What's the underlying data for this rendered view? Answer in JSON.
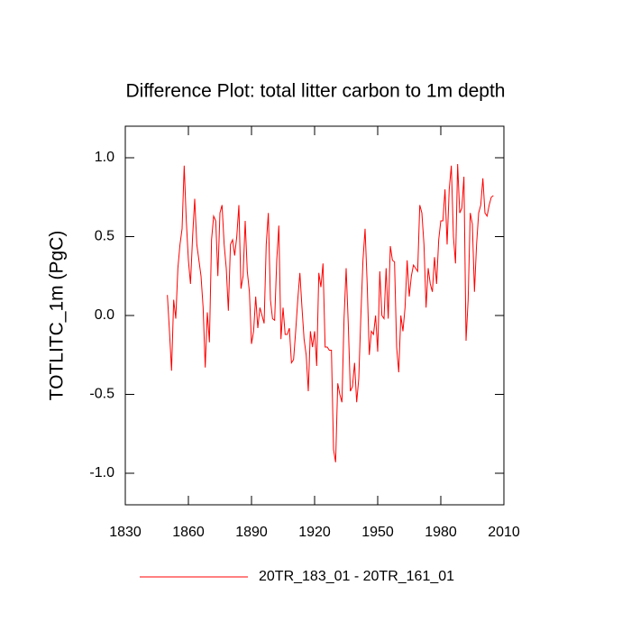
{
  "chart_data": {
    "type": "line",
    "title": "Difference Plot: total litter carbon to 1m depth",
    "y_label": "TOTLITC_1m  (PgC)",
    "x": [
      1850,
      1851,
      1852,
      1853,
      1854,
      1855,
      1856,
      1857,
      1858,
      1859,
      1860,
      1861,
      1862,
      1863,
      1864,
      1865,
      1866,
      1867,
      1868,
      1869,
      1870,
      1871,
      1872,
      1873,
      1874,
      1875,
      1876,
      1877,
      1878,
      1879,
      1880,
      1881,
      1882,
      1883,
      1884,
      1885,
      1886,
      1887,
      1888,
      1889,
      1890,
      1891,
      1892,
      1893,
      1894,
      1895,
      1896,
      1897,
      1898,
      1899,
      1900,
      1901,
      1902,
      1903,
      1904,
      1905,
      1906,
      1907,
      1908,
      1909,
      1910,
      1911,
      1912,
      1913,
      1914,
      1915,
      1916,
      1917,
      1918,
      1919,
      1920,
      1921,
      1922,
      1923,
      1924,
      1925,
      1926,
      1927,
      1928,
      1929,
      1930,
      1931,
      1932,
      1933,
      1934,
      1935,
      1936,
      1937,
      1938,
      1939,
      1940,
      1941,
      1942,
      1943,
      1944,
      1945,
      1946,
      1947,
      1948,
      1949,
      1950,
      1951,
      1952,
      1953,
      1954,
      1955,
      1956,
      1957,
      1958,
      1959,
      1960,
      1961,
      1962,
      1963,
      1964,
      1965,
      1966,
      1967,
      1968,
      1969,
      1970,
      1971,
      1972,
      1973,
      1974,
      1975,
      1976,
      1977,
      1978,
      1979,
      1980,
      1981,
      1982,
      1983,
      1984,
      1985,
      1986,
      1987,
      1988,
      1989,
      1990,
      1991,
      1992,
      1993,
      1994,
      1995,
      1996,
      1997,
      1998,
      1999,
      2000,
      2001,
      2002,
      2003,
      2004,
      2005
    ],
    "series": [
      {
        "name": "20TR_183_01 - 20TR_161_01",
        "color": "#ff0000",
        "values": [
          0.13,
          -0.1,
          -0.35,
          0.1,
          -0.02,
          0.3,
          0.45,
          0.55,
          0.95,
          0.6,
          0.35,
          0.2,
          0.5,
          0.74,
          0.45,
          0.35,
          0.25,
          0.05,
          -0.33,
          0.02,
          -0.17,
          0.48,
          0.63,
          0.6,
          0.25,
          0.65,
          0.7,
          0.45,
          0.3,
          0.03,
          0.45,
          0.48,
          0.38,
          0.5,
          0.7,
          0.17,
          0.25,
          0.6,
          0.28,
          0.15,
          -0.18,
          -0.1,
          0.12,
          -0.08,
          0.05,
          0.0,
          -0.05,
          0.45,
          0.65,
          0.1,
          -0.02,
          -0.03,
          0.35,
          0.57,
          -0.15,
          0.05,
          -0.12,
          -0.12,
          -0.08,
          -0.3,
          -0.28,
          -0.1,
          0.1,
          0.27,
          0.05,
          -0.15,
          -0.25,
          -0.48,
          -0.1,
          -0.2,
          -0.1,
          -0.32,
          0.27,
          0.18,
          0.33,
          -0.2,
          -0.2,
          -0.22,
          -0.22,
          -0.85,
          -0.93,
          -0.43,
          -0.5,
          -0.55,
          -0.02,
          0.3,
          -0.05,
          -0.48,
          -0.45,
          -0.3,
          -0.55,
          -0.4,
          0.0,
          0.35,
          0.55,
          0.2,
          -0.25,
          -0.1,
          -0.12,
          0.0,
          -0.23,
          0.28,
          0.0,
          -0.02,
          0.3,
          -0.02,
          0.44,
          0.35,
          0.34,
          -0.2,
          -0.36,
          0.0,
          -0.1,
          0.05,
          0.35,
          0.12,
          0.25,
          0.32,
          0.3,
          0.28,
          0.7,
          0.65,
          0.45,
          0.05,
          0.3,
          0.2,
          0.15,
          0.37,
          0.2,
          0.48,
          0.6,
          0.6,
          0.8,
          0.45,
          0.8,
          0.95,
          0.5,
          0.33,
          0.96,
          0.65,
          0.68,
          0.88,
          -0.16,
          0.1,
          0.65,
          0.58,
          0.15,
          0.45,
          0.65,
          0.7,
          0.87,
          0.65,
          0.63,
          0.7,
          0.75,
          0.76
        ]
      }
    ],
    "xlim": [
      1830,
      2010
    ],
    "xticks": [
      1830,
      1860,
      1890,
      1920,
      1950,
      1980,
      2010
    ],
    "ylim": [
      -1.2,
      1.2
    ],
    "yticks": [
      {
        "value": -1,
        "label": "-1.0"
      },
      -0.5,
      {
        "value": 0,
        "label": "0.0"
      },
      0.5,
      {
        "value": 1,
        "label": "1.0"
      }
    ]
  }
}
